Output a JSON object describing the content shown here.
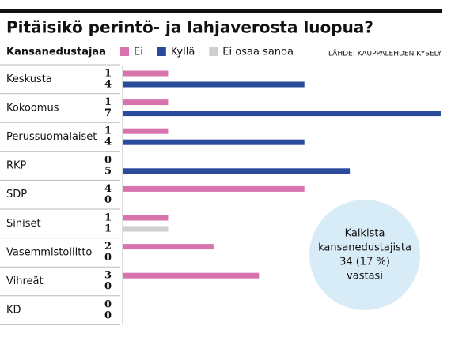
{
  "chart_data": {
    "type": "bar",
    "orientation": "horizontal",
    "title": "Pitäisikö perintö- ja lahjaverosta luopua?",
    "y_label": "Kansanedustajaa",
    "source": "LÄHDE: KAUPPALEHDEN KYSELY",
    "categories": [
      "Keskusta",
      "Kokoomus",
      "Perussuomalaiset",
      "RKP",
      "SDP",
      "Siniset",
      "Vasemmistoliitto",
      "Vihreät",
      "KD"
    ],
    "series": [
      {
        "name": "Ei",
        "color": "#d873ad",
        "values": [
          1,
          1,
          1,
          0,
          4,
          1,
          2,
          3,
          0
        ]
      },
      {
        "name": "Kyllä",
        "color": "#2a4a9b",
        "values": [
          4,
          7,
          4,
          5,
          0,
          null,
          0,
          0,
          0
        ]
      },
      {
        "name": "Ei osaa sanoa",
        "color": "#cfcfcf",
        "values": [
          null,
          null,
          null,
          null,
          null,
          1,
          null,
          null,
          null
        ]
      }
    ],
    "annotation": [
      "Kaikista",
      "kansanedustajista",
      "34 (17 %)",
      "vastasi"
    ]
  }
}
